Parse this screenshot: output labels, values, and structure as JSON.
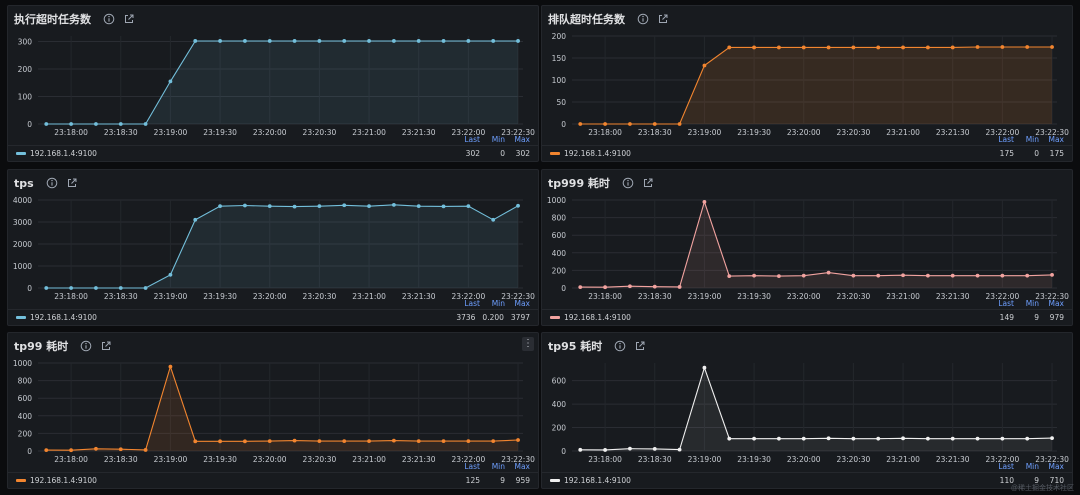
{
  "panels": [
    {
      "id": "exec-timeout",
      "title": "执行超时任务数",
      "color": "#73bfdb",
      "fill": "rgba(115,191,219,0.10)",
      "legend": {
        "name": "192.168.1.4:9100",
        "headers": [
          "Last",
          "Min",
          "Max"
        ],
        "values": [
          "302",
          "0",
          "302"
        ]
      },
      "has_menu": false
    },
    {
      "id": "queue-timeout",
      "title": "排队超时任务数",
      "color": "#f2852f",
      "fill": "rgba(242,133,47,0.14)",
      "legend": {
        "name": "192.168.1.4:9100",
        "headers": [
          "Last",
          "Min",
          "Max"
        ],
        "values": [
          "175",
          "0",
          "175"
        ]
      },
      "has_menu": false
    },
    {
      "id": "tps",
      "title": "tps",
      "color": "#73bfdb",
      "fill": "rgba(115,191,219,0.10)",
      "legend": {
        "name": "192.168.1.4:9100",
        "headers": [
          "Last",
          "Min",
          "Max"
        ],
        "values": [
          "3736",
          "0.200",
          "3797"
        ]
      },
      "has_menu": false
    },
    {
      "id": "tp999",
      "title": "tp999 耗时",
      "color": "#f2a3a0",
      "fill": "rgba(242,163,160,0.10)",
      "legend": {
        "name": "192.168.1.4:9100",
        "headers": [
          "Last",
          "Min",
          "Max"
        ],
        "values": [
          "149",
          "9",
          "979"
        ]
      },
      "has_menu": false
    },
    {
      "id": "tp99",
      "title": "tp99 耗时",
      "color": "#f2852f",
      "fill": "rgba(242,133,47,0.12)",
      "legend": {
        "name": "192.168.1.4:9100",
        "headers": [
          "Last",
          "Min",
          "Max"
        ],
        "values": [
          "125",
          "9",
          "959"
        ]
      },
      "has_menu": true
    },
    {
      "id": "tp95",
      "title": "tp95 耗时",
      "color": "#f0f0f0",
      "fill": "rgba(240,240,240,0.07)",
      "legend": {
        "name": "192.168.1.4:9100",
        "headers": [
          "Last",
          "Min",
          "Max"
        ],
        "values": [
          "110",
          "9",
          "710"
        ]
      },
      "has_menu": false
    }
  ],
  "watermark": "@稀土掘金技术社区",
  "chart_data": [
    {
      "type": "line",
      "title": "执行超时任务数",
      "x_ticks": [
        "23:18:00",
        "23:18:30",
        "23:19:00",
        "23:19:30",
        "23:20:00",
        "23:20:30",
        "23:21:00",
        "23:21:30",
        "23:22:00",
        "23:22:30"
      ],
      "ylim": [
        0,
        320
      ],
      "y_ticks": [
        0,
        100,
        200,
        300
      ],
      "series": [
        {
          "name": "192.168.1.4:9100",
          "x": [
            "23:17:45",
            "23:18:00",
            "23:18:15",
            "23:18:30",
            "23:18:45",
            "23:19:00",
            "23:19:15",
            "23:19:30",
            "23:19:45",
            "23:20:00",
            "23:20:15",
            "23:20:30",
            "23:20:45",
            "23:21:00",
            "23:21:15",
            "23:21:30",
            "23:21:45",
            "23:22:00",
            "23:22:15",
            "23:22:30"
          ],
          "values": [
            0,
            0,
            0,
            0,
            0,
            155,
            302,
            302,
            302,
            302,
            302,
            302,
            302,
            302,
            302,
            302,
            302,
            302,
            302,
            302
          ]
        }
      ]
    },
    {
      "type": "line",
      "title": "排队超时任务数",
      "x_ticks": [
        "23:18:00",
        "23:18:30",
        "23:19:00",
        "23:19:30",
        "23:20:00",
        "23:20:30",
        "23:21:00",
        "23:21:30",
        "23:22:00",
        "23:22:30"
      ],
      "ylim": [
        0,
        200
      ],
      "y_ticks": [
        0,
        50,
        100,
        150,
        200
      ],
      "series": [
        {
          "name": "192.168.1.4:9100",
          "x": [
            "23:17:45",
            "23:18:00",
            "23:18:15",
            "23:18:30",
            "23:18:45",
            "23:19:00",
            "23:19:15",
            "23:19:30",
            "23:19:45",
            "23:20:00",
            "23:20:15",
            "23:20:30",
            "23:20:45",
            "23:21:00",
            "23:21:15",
            "23:21:30",
            "23:21:45",
            "23:22:00",
            "23:22:15",
            "23:22:30"
          ],
          "values": [
            0,
            0,
            0,
            0,
            0,
            133,
            174,
            174,
            174,
            174,
            174,
            174,
            174,
            174,
            174,
            174,
            175,
            175,
            175,
            175
          ]
        }
      ]
    },
    {
      "type": "line",
      "title": "tps",
      "x_ticks": [
        "23:18:00",
        "23:18:30",
        "23:19:00",
        "23:19:30",
        "23:20:00",
        "23:20:30",
        "23:21:00",
        "23:21:30",
        "23:22:00",
        "23:22:30"
      ],
      "ylim": [
        0,
        4000
      ],
      "y_ticks": [
        0,
        1000,
        2000,
        3000,
        4000
      ],
      "series": [
        {
          "name": "192.168.1.4:9100",
          "x": [
            "23:17:45",
            "23:18:00",
            "23:18:15",
            "23:18:30",
            "23:18:45",
            "23:19:00",
            "23:19:15",
            "23:19:30",
            "23:19:45",
            "23:20:00",
            "23:20:15",
            "23:20:30",
            "23:20:45",
            "23:21:00",
            "23:21:15",
            "23:21:30",
            "23:21:45",
            "23:22:00",
            "23:22:15",
            "23:22:30"
          ],
          "values": [
            0,
            0,
            0,
            0,
            0,
            600,
            3100,
            3720,
            3750,
            3720,
            3700,
            3720,
            3760,
            3720,
            3780,
            3720,
            3710,
            3720,
            3100,
            3736
          ]
        }
      ]
    },
    {
      "type": "line",
      "title": "tp999 耗时",
      "x_ticks": [
        "23:18:00",
        "23:18:30",
        "23:19:00",
        "23:19:30",
        "23:20:00",
        "23:20:30",
        "23:21:00",
        "23:21:30",
        "23:22:00",
        "23:22:30"
      ],
      "ylim": [
        0,
        1000
      ],
      "y_ticks": [
        0,
        200,
        400,
        600,
        800,
        1000
      ],
      "series": [
        {
          "name": "192.168.1.4:9100",
          "x": [
            "23:17:45",
            "23:18:00",
            "23:18:15",
            "23:18:30",
            "23:18:45",
            "23:19:00",
            "23:19:15",
            "23:19:30",
            "23:19:45",
            "23:20:00",
            "23:20:15",
            "23:20:30",
            "23:20:45",
            "23:21:00",
            "23:21:15",
            "23:21:30",
            "23:21:45",
            "23:22:00",
            "23:22:15",
            "23:22:30"
          ],
          "values": [
            10,
            9,
            20,
            15,
            12,
            979,
            135,
            140,
            135,
            140,
            175,
            140,
            140,
            145,
            140,
            140,
            140,
            140,
            140,
            149
          ]
        }
      ]
    },
    {
      "type": "line",
      "title": "tp99 耗时",
      "x_ticks": [
        "23:18:00",
        "23:18:30",
        "23:19:00",
        "23:19:30",
        "23:20:00",
        "23:20:30",
        "23:21:00",
        "23:21:30",
        "23:22:00",
        "23:22:30"
      ],
      "ylim": [
        0,
        1000
      ],
      "y_ticks": [
        0,
        200,
        400,
        600,
        800,
        1000
      ],
      "series": [
        {
          "name": "192.168.1.4:9100",
          "x": [
            "23:17:45",
            "23:18:00",
            "23:18:15",
            "23:18:30",
            "23:18:45",
            "23:19:00",
            "23:19:15",
            "23:19:30",
            "23:19:45",
            "23:20:00",
            "23:20:15",
            "23:20:30",
            "23:20:45",
            "23:21:00",
            "23:21:15",
            "23:21:30",
            "23:21:45",
            "23:22:00",
            "23:22:15",
            "23:22:30"
          ],
          "values": [
            10,
            9,
            25,
            20,
            12,
            959,
            110,
            110,
            110,
            112,
            118,
            112,
            112,
            112,
            118,
            112,
            112,
            112,
            112,
            125
          ]
        }
      ]
    },
    {
      "type": "line",
      "title": "tp95 耗时",
      "x_ticks": [
        "23:18:00",
        "23:18:30",
        "23:19:00",
        "23:19:30",
        "23:20:00",
        "23:20:30",
        "23:21:00",
        "23:21:30",
        "23:22:00",
        "23:22:30"
      ],
      "ylim": [
        0,
        750
      ],
      "y_ticks": [
        0,
        200,
        400,
        600
      ],
      "series": [
        {
          "name": "192.168.1.4:9100",
          "x": [
            "23:17:45",
            "23:18:00",
            "23:18:15",
            "23:18:30",
            "23:18:45",
            "23:19:00",
            "23:19:15",
            "23:19:30",
            "23:19:45",
            "23:20:00",
            "23:20:15",
            "23:20:30",
            "23:20:45",
            "23:21:00",
            "23:21:15",
            "23:21:30",
            "23:21:45",
            "23:22:00",
            "23:22:15",
            "23:22:30"
          ],
          "values": [
            10,
            9,
            20,
            18,
            12,
            710,
            105,
            105,
            105,
            105,
            108,
            105,
            105,
            108,
            105,
            105,
            105,
            105,
            105,
            110
          ]
        }
      ]
    }
  ]
}
